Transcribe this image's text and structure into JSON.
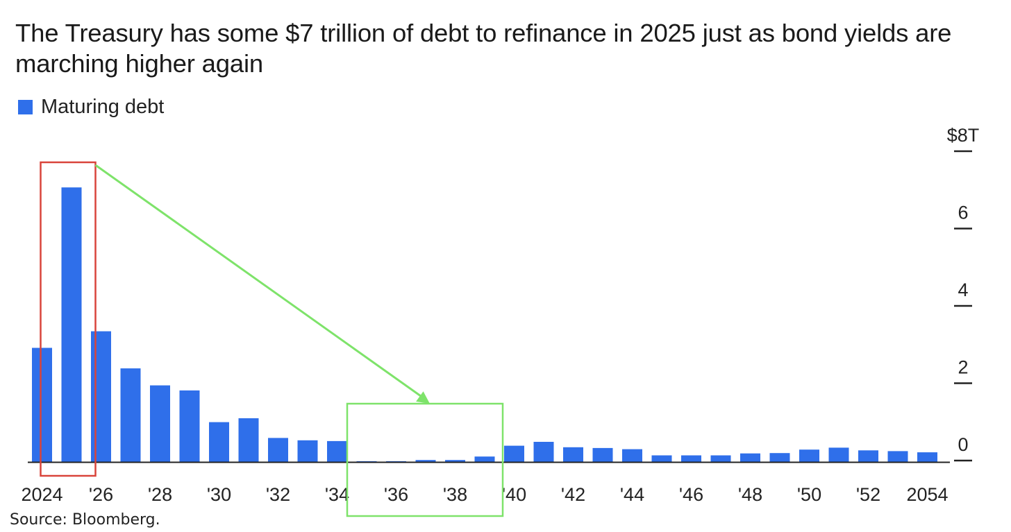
{
  "title": "The Treasury has some $7 trillion of debt to refinance in 2025 just as bond yields are marching higher again",
  "source": "Source: Bloomberg.",
  "colors": {
    "bar": "#2f6fea",
    "annotation_red": "#d9443a",
    "annotation_green": "#7ee36a",
    "axis": "#222222"
  },
  "chart_data": {
    "type": "bar",
    "title": "The Treasury has some $7 trillion of debt to refinance in 2025 just as bond yields are marching higher again",
    "xlabel": "",
    "ylabel": "",
    "ylim": [
      0,
      8
    ],
    "y_ticks": [
      {
        "value": 0,
        "label": "0"
      },
      {
        "value": 2,
        "label": "2"
      },
      {
        "value": 4,
        "label": "4"
      },
      {
        "value": 6,
        "label": "6"
      },
      {
        "value": 8,
        "label": "$8T"
      }
    ],
    "grid": false,
    "legend_position": "top-left",
    "categories": [
      "2024",
      "2025",
      "2026",
      "2027",
      "2028",
      "2029",
      "2030",
      "2031",
      "2032",
      "2033",
      "2034",
      "2035",
      "2036",
      "2037",
      "2038",
      "2039",
      "2040",
      "2041",
      "2042",
      "2043",
      "2044",
      "2045",
      "2046",
      "2047",
      "2048",
      "2049",
      "2050",
      "2051",
      "2052",
      "2053",
      "2054"
    ],
    "x_tick_labels": [
      {
        "category": "2024",
        "label": "2024"
      },
      {
        "category": "2026",
        "label": "'26"
      },
      {
        "category": "2028",
        "label": "'28"
      },
      {
        "category": "2030",
        "label": "'30"
      },
      {
        "category": "2032",
        "label": "'32"
      },
      {
        "category": "2034",
        "label": "'34"
      },
      {
        "category": "2036",
        "label": "'36"
      },
      {
        "category": "2038",
        "label": "'38"
      },
      {
        "category": "2040",
        "label": "'40"
      },
      {
        "category": "2042",
        "label": "'42"
      },
      {
        "category": "2044",
        "label": "'44"
      },
      {
        "category": "2046",
        "label": "'46"
      },
      {
        "category": "2048",
        "label": "'48"
      },
      {
        "category": "2050",
        "label": "'50"
      },
      {
        "category": "2052",
        "label": "'52"
      },
      {
        "category": "2054",
        "label": "2054"
      }
    ],
    "series": [
      {
        "name": "Maturing debt",
        "values": [
          2.95,
          7.1,
          3.38,
          2.42,
          1.98,
          1.85,
          1.03,
          1.13,
          0.62,
          0.56,
          0.54,
          0.02,
          0.02,
          0.05,
          0.05,
          0.14,
          0.42,
          0.52,
          0.38,
          0.36,
          0.33,
          0.17,
          0.17,
          0.17,
          0.22,
          0.23,
          0.32,
          0.37,
          0.3,
          0.28,
          0.25
        ]
      }
    ],
    "annotations": [
      {
        "type": "box",
        "color": "red",
        "from_category": "2024",
        "to_category": "2026"
      },
      {
        "type": "arrow",
        "color": "green",
        "from_category": "2026",
        "to_category": "2037"
      },
      {
        "type": "box",
        "color": "green",
        "from_category": "2035",
        "to_category": "2039"
      }
    ]
  }
}
